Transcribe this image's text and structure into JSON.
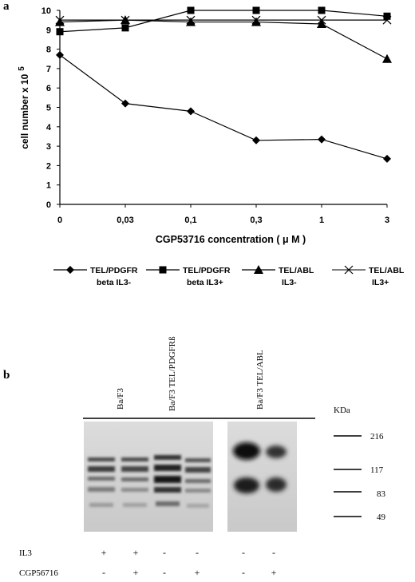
{
  "panel_a": {
    "letter": "a"
  },
  "panel_b": {
    "letter": "b",
    "lane_groups": [
      "Ba/F3",
      "Ba/F3 TEL/PDGFRß",
      "Ba/F3 TEL/ABL"
    ],
    "kda_label": "KDa",
    "markers": [
      "216",
      "117",
      "83",
      "49"
    ],
    "row_labels": [
      "IL3",
      "CGP56716"
    ],
    "il3_signs": [
      "+",
      "+",
      "-",
      "-",
      "-",
      "-"
    ],
    "cgp_signs": [
      "-",
      "+",
      "-",
      "+",
      "-",
      "+"
    ]
  },
  "legend": [
    {
      "line1": "TEL/PDGFR",
      "line2": "beta   IL3-"
    },
    {
      "line1": "TEL/PDGFR",
      "line2": "beta   IL3+"
    },
    {
      "line1": "TEL/ABL",
      "line2": "IL3-"
    },
    {
      "line1": "TEL/ABL",
      "line2": "IL3+"
    }
  ],
  "chart_data": {
    "type": "line",
    "ylabel": "cell   number   x 10",
    "ylabel_exponent": "5",
    "xlabel": "CGP53716   concentration ( μ M )",
    "categories": [
      "0",
      "0,03",
      "0,1",
      "0,3",
      "1",
      "3"
    ],
    "ylim": [
      0,
      10
    ],
    "yticks": [
      "0",
      "1",
      "2",
      "3",
      "4",
      "5",
      "6",
      "7",
      "8",
      "9",
      "10"
    ],
    "grid": false,
    "legend_position": "bottom",
    "series": [
      {
        "name": "TEL/PDGFR beta IL3-",
        "marker": "diamond",
        "values": [
          7.7,
          5.2,
          4.8,
          3.3,
          3.35,
          2.35
        ]
      },
      {
        "name": "TEL/PDGFR beta IL3+",
        "marker": "square",
        "values": [
          8.9,
          9.1,
          10.0,
          10.0,
          10.0,
          9.7
        ]
      },
      {
        "name": "TEL/ABL IL3-",
        "marker": "triangle",
        "values": [
          9.4,
          9.5,
          9.4,
          9.4,
          9.3,
          7.5
        ]
      },
      {
        "name": "TEL/ABL IL3+",
        "marker": "x",
        "values": [
          9.5,
          9.5,
          9.5,
          9.5,
          9.5,
          9.5
        ]
      }
    ]
  }
}
